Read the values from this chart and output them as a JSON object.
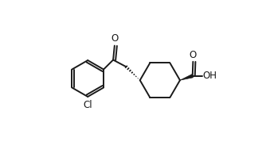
{
  "bg_color": "#ffffff",
  "line_color": "#1a1a1a",
  "line_width": 1.4,
  "figsize": [
    3.34,
    1.98
  ],
  "dpi": 100,
  "xlim": [
    0.0,
    1.0
  ],
  "ylim": [
    0.05,
    0.95
  ]
}
